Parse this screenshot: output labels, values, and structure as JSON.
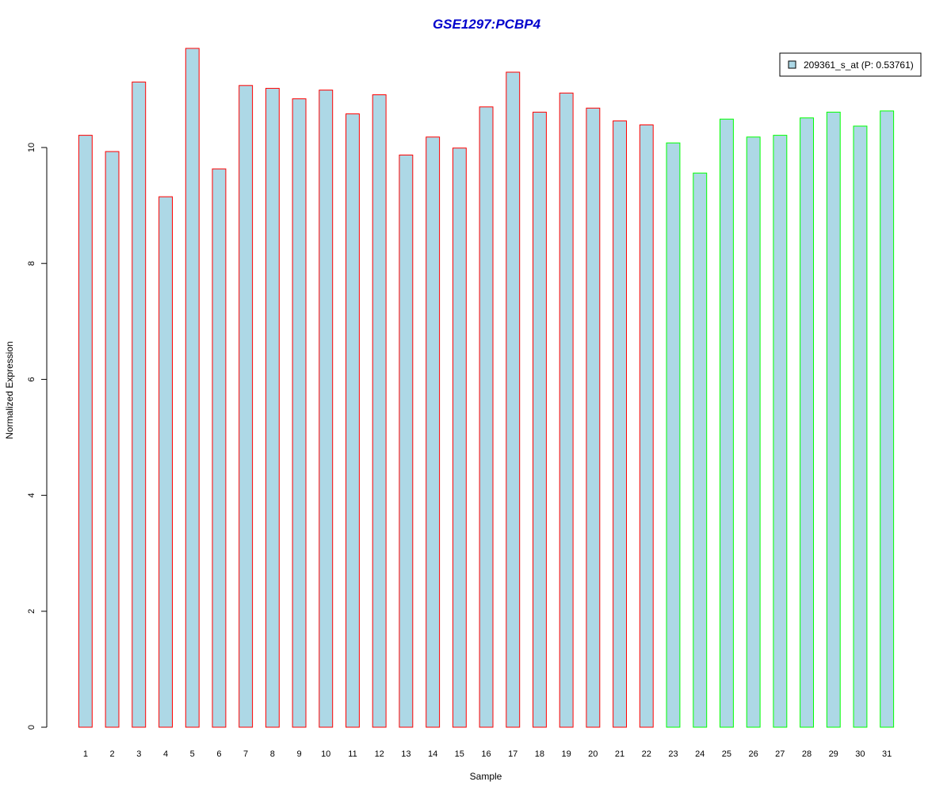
{
  "chart_data": {
    "type": "bar",
    "title": "GSE1297:PCBP4",
    "xlabel": "Sample",
    "ylabel": "Normalized Expression",
    "ylim": [
      0,
      11.8
    ],
    "yticks": [
      0,
      2,
      4,
      6,
      8,
      10
    ],
    "grid": false,
    "legend_position": "top-right",
    "categories": [
      "1",
      "2",
      "3",
      "4",
      "5",
      "6",
      "7",
      "8",
      "9",
      "10",
      "11",
      "12",
      "13",
      "14",
      "15",
      "16",
      "17",
      "18",
      "19",
      "20",
      "21",
      "22",
      "23",
      "24",
      "25",
      "26",
      "27",
      "28",
      "29",
      "30",
      "31"
    ],
    "series": [
      {
        "name": "209361_s_at (P: 0.53761)",
        "values": [
          10.21,
          9.93,
          11.13,
          9.15,
          11.71,
          9.63,
          11.07,
          11.02,
          10.84,
          10.99,
          10.58,
          10.91,
          9.87,
          10.18,
          9.99,
          10.7,
          11.3,
          10.61,
          10.94,
          10.68,
          10.46,
          10.39,
          10.08,
          9.56,
          10.49,
          10.18,
          10.21,
          10.51,
          10.61,
          10.37,
          10.63
        ]
      }
    ],
    "groups": [
      1,
      1,
      1,
      1,
      1,
      1,
      1,
      1,
      1,
      1,
      1,
      1,
      1,
      1,
      1,
      1,
      1,
      1,
      1,
      1,
      1,
      1,
      2,
      2,
      2,
      2,
      2,
      2,
      2,
      2,
      2
    ]
  },
  "colors": {
    "bar_fill": "#add8e6",
    "group_1_border": "#ff0000",
    "group_2_border": "#00ff00",
    "title": "#0000cc",
    "axis": "#000000"
  }
}
